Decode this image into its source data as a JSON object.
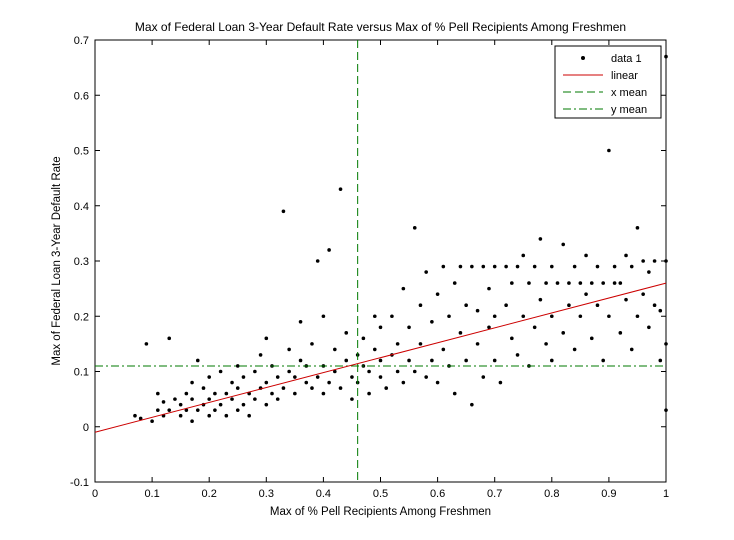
{
  "chart_data": {
    "type": "scatter",
    "title": "Max of Federal Loan 3-Year Default Rate versus Max of % Pell Recipients Among Freshmen",
    "xlabel": "Max of % Pell Recipients Among Freshmen",
    "ylabel": "Max of Federal Loan 3-Year Default Rate",
    "xlim": [
      0,
      1
    ],
    "ylim": [
      -0.1,
      0.7
    ],
    "x_ticks": [
      "0",
      "0.1",
      "0.2",
      "0.3",
      "0.4",
      "0.5",
      "0.6",
      "0.7",
      "0.8",
      "0.9",
      "1"
    ],
    "y_ticks": [
      "-0.1",
      "0",
      "0.1",
      "0.2",
      "0.3",
      "0.4",
      "0.5",
      "0.6",
      "0.7"
    ],
    "grid": false,
    "legend_position": "top-right",
    "legend": [
      "data 1",
      "linear",
      "x mean",
      "y mean"
    ],
    "series": [
      {
        "name": "data 1",
        "style": "points",
        "color": "#000000",
        "points": [
          [
            0.07,
            0.02
          ],
          [
            0.08,
            0.015
          ],
          [
            0.09,
            0.15
          ],
          [
            0.1,
            0.01
          ],
          [
            0.11,
            0.03
          ],
          [
            0.11,
            0.06
          ],
          [
            0.12,
            0.02
          ],
          [
            0.12,
            0.045
          ],
          [
            0.13,
            0.03
          ],
          [
            0.13,
            0.16
          ],
          [
            0.14,
            0.05
          ],
          [
            0.15,
            0.02
          ],
          [
            0.15,
            0.04
          ],
          [
            0.16,
            0.06
          ],
          [
            0.16,
            0.03
          ],
          [
            0.17,
            0.01
          ],
          [
            0.17,
            0.05
          ],
          [
            0.17,
            0.08
          ],
          [
            0.18,
            0.03
          ],
          [
            0.18,
            0.12
          ],
          [
            0.19,
            0.04
          ],
          [
            0.19,
            0.07
          ],
          [
            0.2,
            0.02
          ],
          [
            0.2,
            0.05
          ],
          [
            0.2,
            0.09
          ],
          [
            0.21,
            0.03
          ],
          [
            0.21,
            0.06
          ],
          [
            0.22,
            0.04
          ],
          [
            0.22,
            0.1
          ],
          [
            0.23,
            0.02
          ],
          [
            0.23,
            0.06
          ],
          [
            0.24,
            0.05
          ],
          [
            0.24,
            0.08
          ],
          [
            0.25,
            0.03
          ],
          [
            0.25,
            0.07
          ],
          [
            0.25,
            0.11
          ],
          [
            0.26,
            0.04
          ],
          [
            0.26,
            0.09
          ],
          [
            0.27,
            0.06
          ],
          [
            0.27,
            0.02
          ],
          [
            0.28,
            0.05
          ],
          [
            0.28,
            0.1
          ],
          [
            0.29,
            0.07
          ],
          [
            0.29,
            0.13
          ],
          [
            0.3,
            0.04
          ],
          [
            0.3,
            0.08
          ],
          [
            0.3,
            0.16
          ],
          [
            0.31,
            0.06
          ],
          [
            0.31,
            0.11
          ],
          [
            0.32,
            0.05
          ],
          [
            0.32,
            0.09
          ],
          [
            0.33,
            0.07
          ],
          [
            0.33,
            0.39
          ],
          [
            0.34,
            0.1
          ],
          [
            0.34,
            0.14
          ],
          [
            0.35,
            0.06
          ],
          [
            0.35,
            0.09
          ],
          [
            0.36,
            0.12
          ],
          [
            0.36,
            0.19
          ],
          [
            0.37,
            0.08
          ],
          [
            0.37,
            0.11
          ],
          [
            0.38,
            0.07
          ],
          [
            0.38,
            0.15
          ],
          [
            0.39,
            0.09
          ],
          [
            0.39,
            0.3
          ],
          [
            0.4,
            0.06
          ],
          [
            0.4,
            0.11
          ],
          [
            0.4,
            0.2
          ],
          [
            0.41,
            0.08
          ],
          [
            0.41,
            0.32
          ],
          [
            0.42,
            0.1
          ],
          [
            0.42,
            0.14
          ],
          [
            0.43,
            0.07
          ],
          [
            0.43,
            0.43
          ],
          [
            0.44,
            0.12
          ],
          [
            0.44,
            0.17
          ],
          [
            0.45,
            0.09
          ],
          [
            0.45,
            0.05
          ],
          [
            0.46,
            0.13
          ],
          [
            0.46,
            0.08
          ],
          [
            0.47,
            0.11
          ],
          [
            0.47,
            0.16
          ],
          [
            0.48,
            0.1
          ],
          [
            0.48,
            0.06
          ],
          [
            0.49,
            0.14
          ],
          [
            0.49,
            0.2
          ],
          [
            0.5,
            0.09
          ],
          [
            0.5,
            0.12
          ],
          [
            0.5,
            0.18
          ],
          [
            0.51,
            0.07
          ],
          [
            0.52,
            0.13
          ],
          [
            0.52,
            0.2
          ],
          [
            0.53,
            0.1
          ],
          [
            0.53,
            0.15
          ],
          [
            0.54,
            0.08
          ],
          [
            0.54,
            0.25
          ],
          [
            0.55,
            0.12
          ],
          [
            0.55,
            0.18
          ],
          [
            0.56,
            0.1
          ],
          [
            0.56,
            0.36
          ],
          [
            0.57,
            0.15
          ],
          [
            0.57,
            0.22
          ],
          [
            0.58,
            0.09
          ],
          [
            0.58,
            0.28
          ],
          [
            0.59,
            0.12
          ],
          [
            0.59,
            0.19
          ],
          [
            0.6,
            0.08
          ],
          [
            0.6,
            0.24
          ],
          [
            0.61,
            0.14
          ],
          [
            0.61,
            0.29
          ],
          [
            0.62,
            0.11
          ],
          [
            0.62,
            0.2
          ],
          [
            0.63,
            0.06
          ],
          [
            0.63,
            0.26
          ],
          [
            0.64,
            0.17
          ],
          [
            0.64,
            0.29
          ],
          [
            0.65,
            0.12
          ],
          [
            0.65,
            0.22
          ],
          [
            0.66,
            0.04
          ],
          [
            0.66,
            0.29
          ],
          [
            0.67,
            0.15
          ],
          [
            0.67,
            0.21
          ],
          [
            0.68,
            0.09
          ],
          [
            0.68,
            0.29
          ],
          [
            0.69,
            0.18
          ],
          [
            0.69,
            0.25
          ],
          [
            0.7,
            0.12
          ],
          [
            0.7,
            0.29
          ],
          [
            0.7,
            0.2
          ],
          [
            0.71,
            0.08
          ],
          [
            0.72,
            0.22
          ],
          [
            0.72,
            0.29
          ],
          [
            0.73,
            0.16
          ],
          [
            0.73,
            0.26
          ],
          [
            0.74,
            0.13
          ],
          [
            0.74,
            0.29
          ],
          [
            0.75,
            0.2
          ],
          [
            0.75,
            0.31
          ],
          [
            0.76,
            0.11
          ],
          [
            0.76,
            0.26
          ],
          [
            0.77,
            0.18
          ],
          [
            0.77,
            0.29
          ],
          [
            0.78,
            0.23
          ],
          [
            0.78,
            0.34
          ],
          [
            0.79,
            0.15
          ],
          [
            0.79,
            0.26
          ],
          [
            0.8,
            0.2
          ],
          [
            0.8,
            0.29
          ],
          [
            0.8,
            0.12
          ],
          [
            0.81,
            0.26
          ],
          [
            0.82,
            0.17
          ],
          [
            0.82,
            0.33
          ],
          [
            0.83,
            0.22
          ],
          [
            0.83,
            0.26
          ],
          [
            0.84,
            0.14
          ],
          [
            0.84,
            0.29
          ],
          [
            0.85,
            0.2
          ],
          [
            0.85,
            0.26
          ],
          [
            0.86,
            0.24
          ],
          [
            0.86,
            0.31
          ],
          [
            0.87,
            0.16
          ],
          [
            0.87,
            0.26
          ],
          [
            0.88,
            0.22
          ],
          [
            0.88,
            0.29
          ],
          [
            0.89,
            0.12
          ],
          [
            0.89,
            0.26
          ],
          [
            0.9,
            0.5
          ],
          [
            0.9,
            0.2
          ],
          [
            0.91,
            0.26
          ],
          [
            0.91,
            0.29
          ],
          [
            0.92,
            0.17
          ],
          [
            0.92,
            0.26
          ],
          [
            0.93,
            0.23
          ],
          [
            0.93,
            0.31
          ],
          [
            0.94,
            0.14
          ],
          [
            0.94,
            0.29
          ],
          [
            0.95,
            0.2
          ],
          [
            0.95,
            0.36
          ],
          [
            0.96,
            0.24
          ],
          [
            0.96,
            0.3
          ],
          [
            0.97,
            0.18
          ],
          [
            0.97,
            0.28
          ],
          [
            0.98,
            0.22
          ],
          [
            0.98,
            0.3
          ],
          [
            0.99,
            0.12
          ],
          [
            0.99,
            0.21
          ],
          [
            1.0,
            0.67
          ],
          [
            1.0,
            0.3
          ],
          [
            1.0,
            0.15
          ],
          [
            1.0,
            0.03
          ]
        ]
      },
      {
        "name": "linear",
        "style": "line",
        "color": "#cc0000",
        "x": [
          0,
          1
        ],
        "y": [
          -0.01,
          0.26
        ]
      },
      {
        "name": "x mean",
        "style": "dashed",
        "color": "#007a00",
        "x_value": 0.46
      },
      {
        "name": "y mean",
        "style": "dash-dot",
        "color": "#007a00",
        "y_value": 0.11
      }
    ]
  }
}
